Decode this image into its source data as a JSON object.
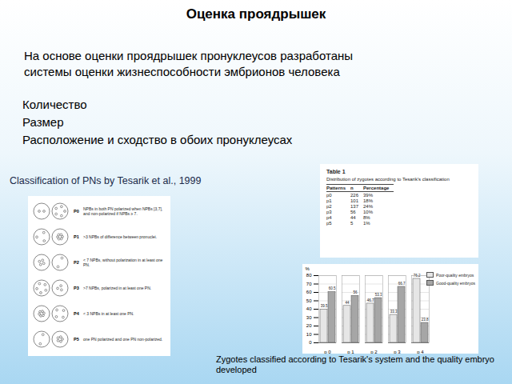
{
  "header": {
    "title": "Оценка проядрышек"
  },
  "intro": [
    "На основе  оценки проядрышек пронуклеусов разработаны",
    "системы оценки жизнеспособности эмбрионов человека"
  ],
  "criteria": [
    "Количество",
    "Размер",
    "Расположение и сходство в обоих пронуклеусах"
  ],
  "classification": {
    "caption": "Classification of PNs by Tesarik et al., 1999",
    "patterns": [
      {
        "label": "P0",
        "text": "NPBs in both PN polarized when NPBs [3,7], and non-polarized if NPBs ≥ 7."
      },
      {
        "label": "P1",
        "text": ">3 NPBs of difference between pronuclei."
      },
      {
        "label": "P2",
        "text": "< 7 NPBs, without polarization in at least one PN."
      },
      {
        "label": "P3",
        "text": ">7 NPBs, polarized in at least one PN."
      },
      {
        "label": "P4",
        "text": "< 3 NPBs in at least one PN."
      },
      {
        "label": "P5",
        "text": "one PN polarized and one PN non-polarized."
      }
    ]
  },
  "table": {
    "title": "Table 1",
    "caption": "Distribution of zygotes according to Tesarik's classification",
    "columns": [
      "Patterns",
      "n",
      "Percentage"
    ],
    "rows": [
      [
        "p0",
        "226",
        "39%"
      ],
      [
        "p1",
        "101",
        "18%"
      ],
      [
        "p2",
        "137",
        "24%"
      ],
      [
        "p3",
        "56",
        "10%"
      ],
      [
        "p4",
        "44",
        "8%"
      ],
      [
        "p5",
        "5",
        "1%"
      ]
    ]
  },
  "chart_data": {
    "type": "bar",
    "caption": "Zygotes classified according to Tesarik's system and the quality embryo developed",
    "y_label": "%",
    "categories": [
      "p 0",
      "p 1",
      "p 2",
      "p 3",
      "p 4"
    ],
    "series": [
      {
        "name": "Poor-quality embryos",
        "color": "#e6e6e6",
        "values": [
          39.5,
          44.0,
          46.7,
          33.3,
          76.2
        ]
      },
      {
        "name": "Good-quality embryos",
        "color": "#a6a6a6",
        "values": [
          60.5,
          56.0,
          53.3,
          66.7,
          23.8
        ]
      }
    ],
    "ylim": [
      0,
      80
    ],
    "yticks": [
      0,
      10,
      20,
      30,
      40,
      50,
      60,
      70,
      80
    ],
    "grid": true,
    "legend": "right",
    "data_labels": true
  }
}
